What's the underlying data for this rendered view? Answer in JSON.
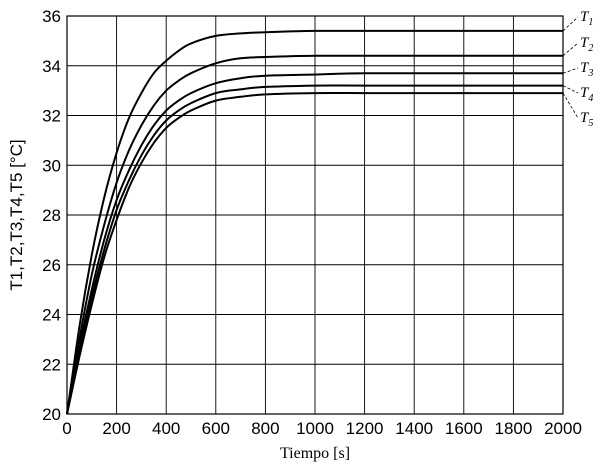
{
  "chart_data": {
    "type": "line",
    "xlabel": "Tiempo [s]",
    "ylabel": "T1,T2,T3,T4,T5 [°C]",
    "xlim": [
      0,
      2000
    ],
    "ylim": [
      20,
      36
    ],
    "xticks": [
      "0",
      "200",
      "400",
      "600",
      "800",
      "1000",
      "1200",
      "1400",
      "1600",
      "1800",
      "2000"
    ],
    "yticks": [
      "20",
      "22",
      "24",
      "26",
      "28",
      "30",
      "32",
      "34",
      "36"
    ],
    "grid": true,
    "legend": "right, labels at curve ends",
    "line_color": "#000000",
    "x": [
      0,
      50,
      100,
      150,
      200,
      250,
      300,
      350,
      400,
      450,
      500,
      600,
      700,
      800,
      1000,
      1200,
      1500,
      2000
    ],
    "series": [
      {
        "name": "T",
        "sub": "1",
        "values": [
          20.0,
          23.5,
          26.4,
          28.7,
          30.5,
          31.9,
          32.9,
          33.7,
          34.2,
          34.6,
          34.9,
          35.2,
          35.3,
          35.35,
          35.4,
          35.4,
          35.4,
          35.4
        ]
      },
      {
        "name": "T",
        "sub": "2",
        "values": [
          20.0,
          23.0,
          25.6,
          27.6,
          29.3,
          30.6,
          31.6,
          32.4,
          33.0,
          33.4,
          33.7,
          34.1,
          34.3,
          34.35,
          34.4,
          34.4,
          34.4,
          34.4
        ]
      },
      {
        "name": "T",
        "sub": "3",
        "values": [
          20.0,
          22.7,
          25.0,
          27.0,
          28.6,
          29.8,
          30.8,
          31.6,
          32.2,
          32.6,
          32.9,
          33.3,
          33.5,
          33.6,
          33.65,
          33.7,
          33.7,
          33.7
        ]
      },
      {
        "name": "T",
        "sub": "4",
        "values": [
          20.0,
          22.5,
          24.7,
          26.6,
          28.2,
          29.4,
          30.4,
          31.2,
          31.8,
          32.2,
          32.5,
          32.9,
          33.05,
          33.15,
          33.2,
          33.2,
          33.2,
          33.2
        ]
      },
      {
        "name": "T",
        "sub": "5",
        "values": [
          20.0,
          22.3,
          24.4,
          26.3,
          27.8,
          29.1,
          30.1,
          30.9,
          31.5,
          31.9,
          32.2,
          32.6,
          32.75,
          32.85,
          32.9,
          32.9,
          32.9,
          32.9
        ]
      }
    ]
  }
}
